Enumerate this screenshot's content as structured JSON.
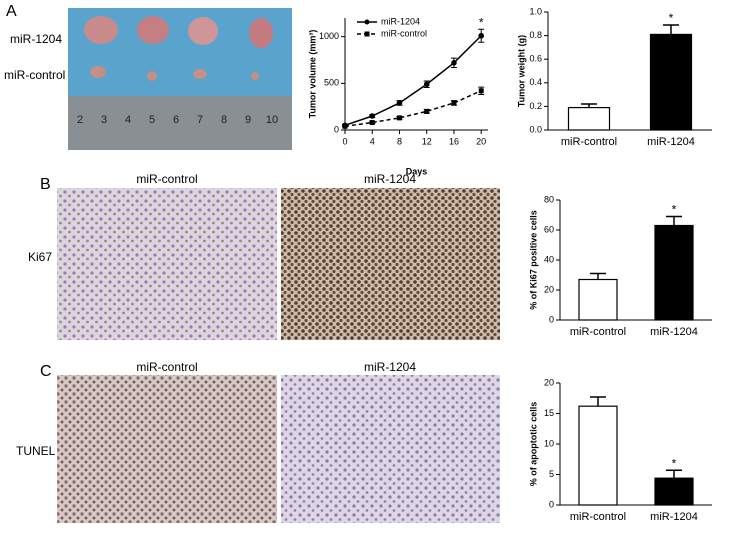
{
  "figure": {
    "panels": [
      "A",
      "B",
      "C"
    ],
    "photo_rows": [
      "miR-1204",
      "miR-control"
    ],
    "ruler_labels": [
      "2",
      "3",
      "4",
      "5",
      "6",
      "7",
      "8",
      "9",
      "10"
    ],
    "columns_b": [
      "miR-control",
      "miR-1204"
    ],
    "row_b": "Ki67",
    "columns_c": [
      "miR-control",
      "miR-1204"
    ],
    "row_c": "TUNEL"
  },
  "chart_data": [
    {
      "type": "line",
      "ylabel": "Tumor volume (mm³)",
      "xlabel": "Days",
      "x": [
        0,
        4,
        8,
        12,
        16,
        20
      ],
      "xlim": [
        0,
        21
      ],
      "xticks": [
        0,
        4,
        8,
        12,
        16,
        20
      ],
      "ylim": [
        0,
        1200
      ],
      "yticks": [
        0,
        500,
        1000
      ],
      "annotation": "*",
      "legend": "upper left",
      "series": [
        {
          "name": "miR-1204",
          "color": "#000000",
          "line_style": "solid",
          "marker": "circle",
          "values": [
            50,
            150,
            290,
            490,
            720,
            1010
          ],
          "errors": [
            10,
            15,
            25,
            35,
            50,
            70
          ]
        },
        {
          "name": "miR-control",
          "color": "#000000",
          "line_style": "dashed",
          "marker": "square",
          "values": [
            40,
            80,
            130,
            200,
            290,
            420
          ],
          "errors": [
            5,
            10,
            15,
            20,
            25,
            40
          ]
        }
      ]
    },
    {
      "type": "bar",
      "ylabel": "Tumor weight (g)",
      "categories": [
        "miR-control",
        "miR-1204"
      ],
      "values": [
        0.19,
        0.81
      ],
      "errors": [
        0.03,
        0.08
      ],
      "colors": [
        "#ffffff",
        "#000000"
      ],
      "ylim": [
        0,
        1.0
      ],
      "yticks": [
        {
          "value": 0,
          "label": "0.0"
        },
        0.2,
        0.4,
        0.6,
        0.8,
        {
          "value": 1,
          "label": "1.0"
        }
      ],
      "annotation": "*"
    },
    {
      "type": "bar",
      "ylabel": "% of Ki67 positive cells",
      "categories": [
        "miR-control",
        "miR-1204"
      ],
      "values": [
        27,
        63
      ],
      "errors": [
        4,
        6
      ],
      "colors": [
        "#ffffff",
        "#000000"
      ],
      "ylim": [
        0,
        80
      ],
      "yticks": [
        0,
        20,
        40,
        60,
        80
      ],
      "annotation": "*"
    },
    {
      "type": "bar",
      "ylabel": "% of apoptotic cells",
      "categories": [
        "miR-control",
        "miR-1204"
      ],
      "values": [
        16.2,
        4.4
      ],
      "errors": [
        1.5,
        1.3
      ],
      "colors": [
        "#ffffff",
        "#000000"
      ],
      "ylim": [
        0,
        20
      ],
      "yticks": [
        0,
        5,
        10,
        15,
        20
      ],
      "annotation": "*"
    }
  ]
}
